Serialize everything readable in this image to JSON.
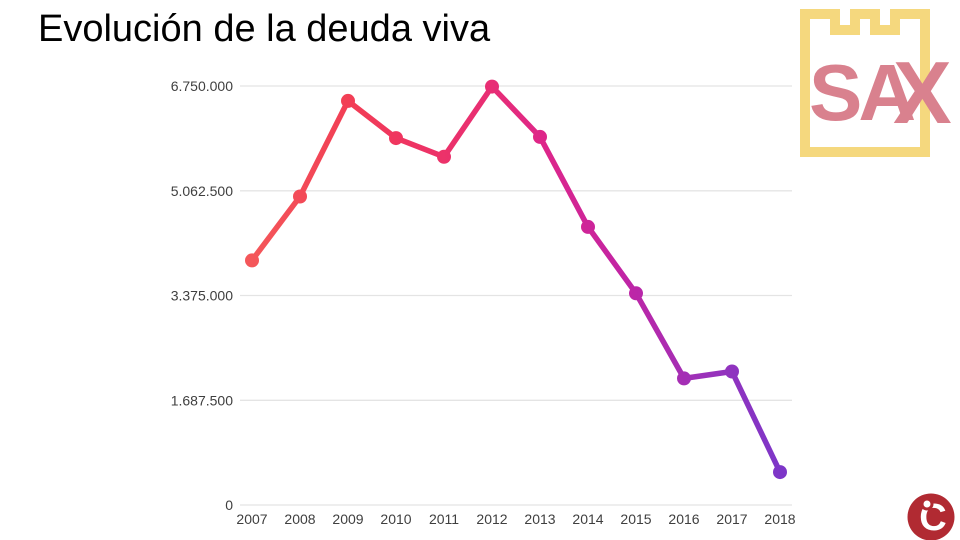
{
  "title": "Evolución de la deuda viva",
  "logo_sax": {
    "text_sa": "SA",
    "text_x": "X",
    "castle_color": "#F5D87E",
    "text_color": "#D9818E"
  },
  "logo_ic": {
    "letter": "C",
    "circle_color": "#B12A32",
    "glyph_color": "#FFFFFF"
  },
  "chart_data": {
    "type": "line",
    "title": "Evolución de la deuda viva",
    "x": [
      2007,
      2008,
      2009,
      2010,
      2011,
      2012,
      2013,
      2014,
      2015,
      2016,
      2017,
      2018
    ],
    "values": [
      3940000,
      4970000,
      6510000,
      5910000,
      5610000,
      6740000,
      5930000,
      4480000,
      3410000,
      2040000,
      2150000,
      530000
    ],
    "series_name": "Deuda viva",
    "xlabel": "",
    "ylabel": "",
    "ylim": [
      0,
      6750000
    ],
    "y_ticks": [
      "6.750.000",
      "5.062.500",
      "3.375.000",
      "1.687.500",
      "0"
    ],
    "y_tick_values": [
      6750000,
      5062500,
      3375000,
      1687500,
      0
    ],
    "grid": true,
    "legend": false,
    "axis_color": "#3f3f3f",
    "grid_color": "#e4e4e4",
    "line_gradient_stops": [
      {
        "offset": "0%",
        "color": "#F4575A"
      },
      {
        "offset": "18%",
        "color": "#F23F55"
      },
      {
        "offset": "28%",
        "color": "#EF3560"
      },
      {
        "offset": "45%",
        "color": "#E82E74"
      },
      {
        "offset": "55%",
        "color": "#DE2689"
      },
      {
        "offset": "70%",
        "color": "#C224A4"
      },
      {
        "offset": "85%",
        "color": "#9C31B9"
      },
      {
        "offset": "100%",
        "color": "#7D36C8"
      }
    ]
  }
}
